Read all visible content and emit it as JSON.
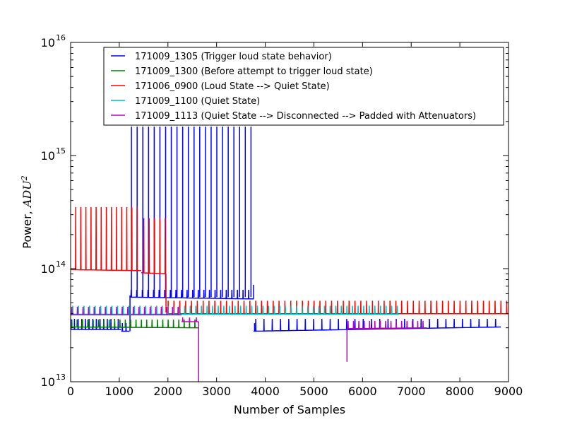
{
  "chart_data": {
    "type": "line",
    "title": "",
    "xlabel": "Number of Samples",
    "ylabel_prefix": "Power, ",
    "ylabel_unit": "ADU",
    "ylabel_unit_exp": "2",
    "xlim": [
      0,
      9000
    ],
    "ylim": [
      10000000000000.0,
      1e+16
    ],
    "y_scale": "log",
    "x_ticks": [
      0,
      1000,
      2000,
      3000,
      4000,
      5000,
      6000,
      7000,
      8000,
      9000
    ],
    "x_tick_labels": [
      "0",
      "1000",
      "2000",
      "3000",
      "4000",
      "5000",
      "6000",
      "7000",
      "8000",
      "9000"
    ],
    "y_ticks": [
      {
        "value": 10000000000000.0,
        "base": "10",
        "exp": "13"
      },
      {
        "value": 100000000000000.0,
        "base": "10",
        "exp": "14"
      },
      {
        "value": 1000000000000000.0,
        "base": "10",
        "exp": "15"
      },
      {
        "value": 1e+16,
        "base": "10",
        "exp": "16"
      }
    ],
    "grid": false,
    "legend_position": "top-right",
    "series": [
      {
        "name": "171009_1305 (Trigger loud state behavior)",
        "color": "#0000ff",
        "segments": [
          {
            "x": [
              0,
              1040
            ],
            "baseline": [
              29000000000000.0,
              29000000000000.0
            ],
            "spike_start": 0,
            "spike_end": 1030,
            "spike_step": 75,
            "spike_peak": 36000000000000.0
          },
          {
            "x": [
              1040,
              1210
            ],
            "baseline": [
              28000000000000.0,
              28000000000000.0
            ],
            "spike_start": 1060,
            "spike_end": 1200,
            "spike_step": 75,
            "spike_peak": 33000000000000.0
          },
          {
            "x": [
              1220,
              3760
            ],
            "baseline": [
              56000000000000.0,
              54000000000000.0
            ],
            "spike_start": 1240,
            "spike_end": 3740,
            "spike_step": 115,
            "spike_peak": 65000000000000.0
          },
          {
            "x": [
              3760,
              8840
            ],
            "baseline": [
              28000000000000.0,
              30500000000000.0
            ],
            "spike_start": 3800,
            "spike_end": 8820,
            "spike_step": 170,
            "spike_peak": 36000000000000.0
          }
        ],
        "tall_spikes": {
          "start": 1250,
          "end": 3710,
          "step": 117,
          "peak": 1800000000000000.0,
          "base": 56000000000000.0
        },
        "step_transitions": [
          {
            "x": 1220,
            "from": 28000000000000.0,
            "to": 58000000000000.0
          },
          {
            "x": 3760,
            "from": 54000000000000.0,
            "to": 72000000000000.0
          },
          {
            "x": 3780,
            "from": 33000000000000.0,
            "to": 28000000000000.0
          }
        ]
      },
      {
        "name": "171009_1300 (Before attempt to trigger loud state)",
        "color": "#008000",
        "segments": [
          {
            "x": [
              0,
              2630
            ],
            "baseline": [
              30500000000000.0,
              30000000000000.0
            ],
            "spike_start": 20,
            "spike_end": 2620,
            "spike_step": 110,
            "spike_peak": 35500000000000.0
          }
        ]
      },
      {
        "name": "171006_0900 (Loud State --> Quiet State)",
        "color": "#ff0000",
        "segments": [
          {
            "x": [
              0,
              1450
            ],
            "baseline": [
              98000000000000.0,
              96000000000000.0
            ],
            "spike_start": 100,
            "spike_end": 1450,
            "spike_step": 105,
            "spike_peak": 350000000000000.0
          },
          {
            "x": [
              1450,
              1950
            ],
            "baseline": [
              92000000000000.0,
              90000000000000.0
            ],
            "spike_start": 1500,
            "spike_end": 1950,
            "spike_step": 110,
            "spike_peak": 280000000000000.0
          },
          {
            "x": [
              1980,
              9000
            ],
            "baseline": [
              40000000000000.0,
              40000000000000.0
            ],
            "spike_start": 2000,
            "spike_end": 8960,
            "spike_step": 120,
            "spike_peak": 52000000000000.0
          }
        ],
        "step_transitions": [
          {
            "x": 1960,
            "from": 90000000000000.0,
            "to": 41000000000000.0
          }
        ]
      },
      {
        "name": "171009_1100 (Quiet State)",
        "color": "#00bfbf",
        "segments": [
          {
            "x": [
              0,
              6750
            ],
            "baseline": [
              39500000000000.0,
              39500000000000.0
            ],
            "spike_start": 40,
            "spike_end": 6740,
            "spike_step": 115,
            "spike_peak": 47000000000000.0
          }
        ]
      },
      {
        "name": "171009_1113 (Quiet State --> Disconnected --> Padded with Attenuators)",
        "color": "#bf00bf",
        "segments": [
          {
            "x": [
              0,
              2280
            ],
            "baseline": [
              39000000000000.0,
              39000000000000.0
            ],
            "spike_start": 20,
            "spike_end": 2270,
            "spike_step": 115,
            "spike_peak": 46000000000000.0
          },
          {
            "x": [
              2280,
              2630
            ],
            "baseline": [
              34000000000000.0,
              34000000000000.0
            ],
            "spike_start": 2300,
            "spike_end": 2620,
            "spike_step": 140,
            "spike_peak": 37000000000000.0
          },
          {
            "x": [
              5680,
              7320
            ],
            "baseline": [
              29500000000000.0,
              30000000000000.0
            ],
            "spike_start": 5700,
            "spike_end": 7310,
            "spike_step": 110,
            "spike_peak": 34500000000000.0
          }
        ],
        "drops": [
          {
            "x": 2630,
            "from": 34000000000000.0,
            "to": 10000000000000.0
          },
          {
            "x": 5680,
            "from": 15000000000000.0,
            "to": 29500000000000.0
          }
        ]
      }
    ]
  }
}
